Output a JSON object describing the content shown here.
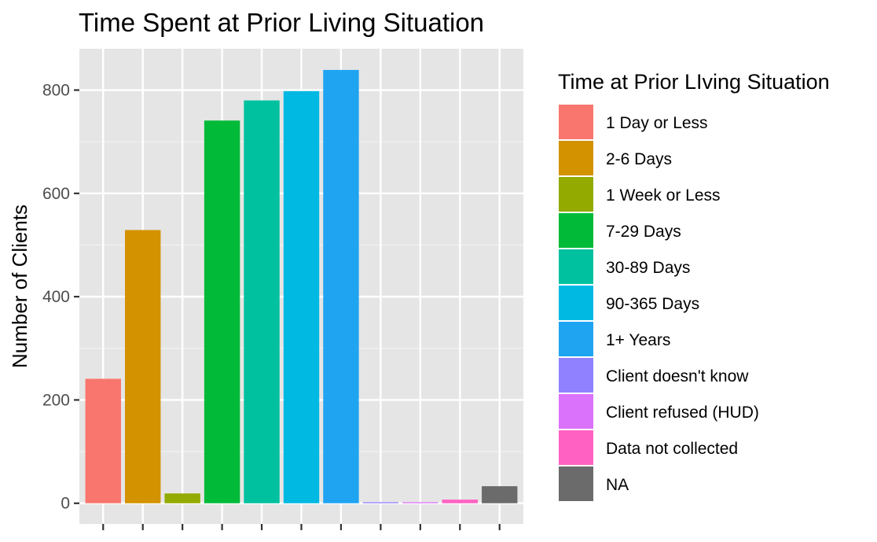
{
  "chart_data": {
    "type": "bar",
    "title": "Time Spent at Prior Living Situation",
    "xlabel": "",
    "ylabel": "Number of Clients",
    "ylim": [
      -40,
      880
    ],
    "yticks": [
      0,
      200,
      400,
      600,
      800
    ],
    "grid": true,
    "legend_position": "right",
    "legend_title": "Time at Prior LIving Situation",
    "categories": [
      "1 Day or Less",
      "2-6 Days",
      "1 Week or Less",
      "7-29 Days",
      "30-89 Days",
      "90-365 Days",
      "1+ Years",
      "Client doesn't know",
      "Client refused (HUD)",
      "Data not collected",
      "NA"
    ],
    "values": [
      241,
      529,
      19,
      741,
      780,
      798,
      839,
      2,
      2,
      7,
      33
    ],
    "colors": [
      "#F8766D",
      "#D39200",
      "#93AA00",
      "#00BA38",
      "#00C19F",
      "#00B9E3",
      "#1FA4F2",
      "#8F81FF",
      "#DB72FB",
      "#FF61C3",
      "#6B6B6B"
    ]
  }
}
